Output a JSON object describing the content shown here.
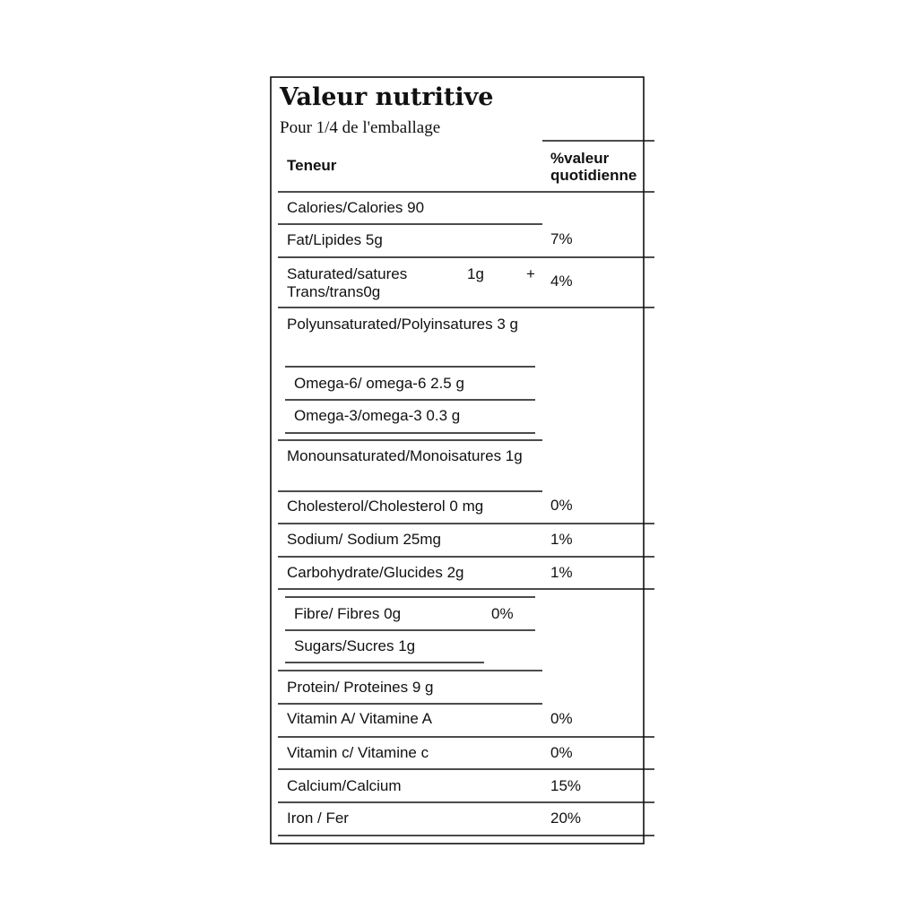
{
  "title": "Valeur nutritive",
  "subtitle": "Pour 1/4 de l'emballage",
  "header": {
    "nutrient": "Teneur",
    "dv": "%valeur quotidienne"
  },
  "rows": [
    {
      "label": "Calories/Calories 90"
    },
    {
      "label": "Fat/Lipides 5g",
      "dv": "7%"
    },
    {
      "label": "Saturated/satures",
      "amount": "1g",
      "plus": "+",
      "label2": "Trans/trans0g",
      "dv": "4%"
    },
    {
      "label": "Polyunsaturated/Polyinsatures 3 g"
    },
    {
      "label": "Omega-6/ omega-6 2.5 g"
    },
    {
      "label": "Omega-3/omega-3 0.3 g"
    },
    {
      "label": "Monounsaturated/Monoisatures 1g"
    },
    {
      "label": "Cholesterol/Cholesterol 0 mg",
      "dv": "0%"
    },
    {
      "label": "Sodium/ Sodium 25mg",
      "dv": "1%"
    },
    {
      "label": "Carbohydrate/Glucides 2g",
      "dv": "1%"
    },
    {
      "label": "Fibre/ Fibres 0g",
      "dv": "0%"
    },
    {
      "label": "Sugars/Sucres 1g"
    },
    {
      "label": "Protein/ Proteines 9 g"
    },
    {
      "label": "Vitamin A/ Vitamine A",
      "dv": "0%"
    },
    {
      "label": "Vitamin c/ Vitamine c",
      "dv": "0%"
    },
    {
      "label": "Calcium/Calcium",
      "dv": "15%"
    },
    {
      "label": "Iron / Fer",
      "dv": "20%"
    }
  ]
}
